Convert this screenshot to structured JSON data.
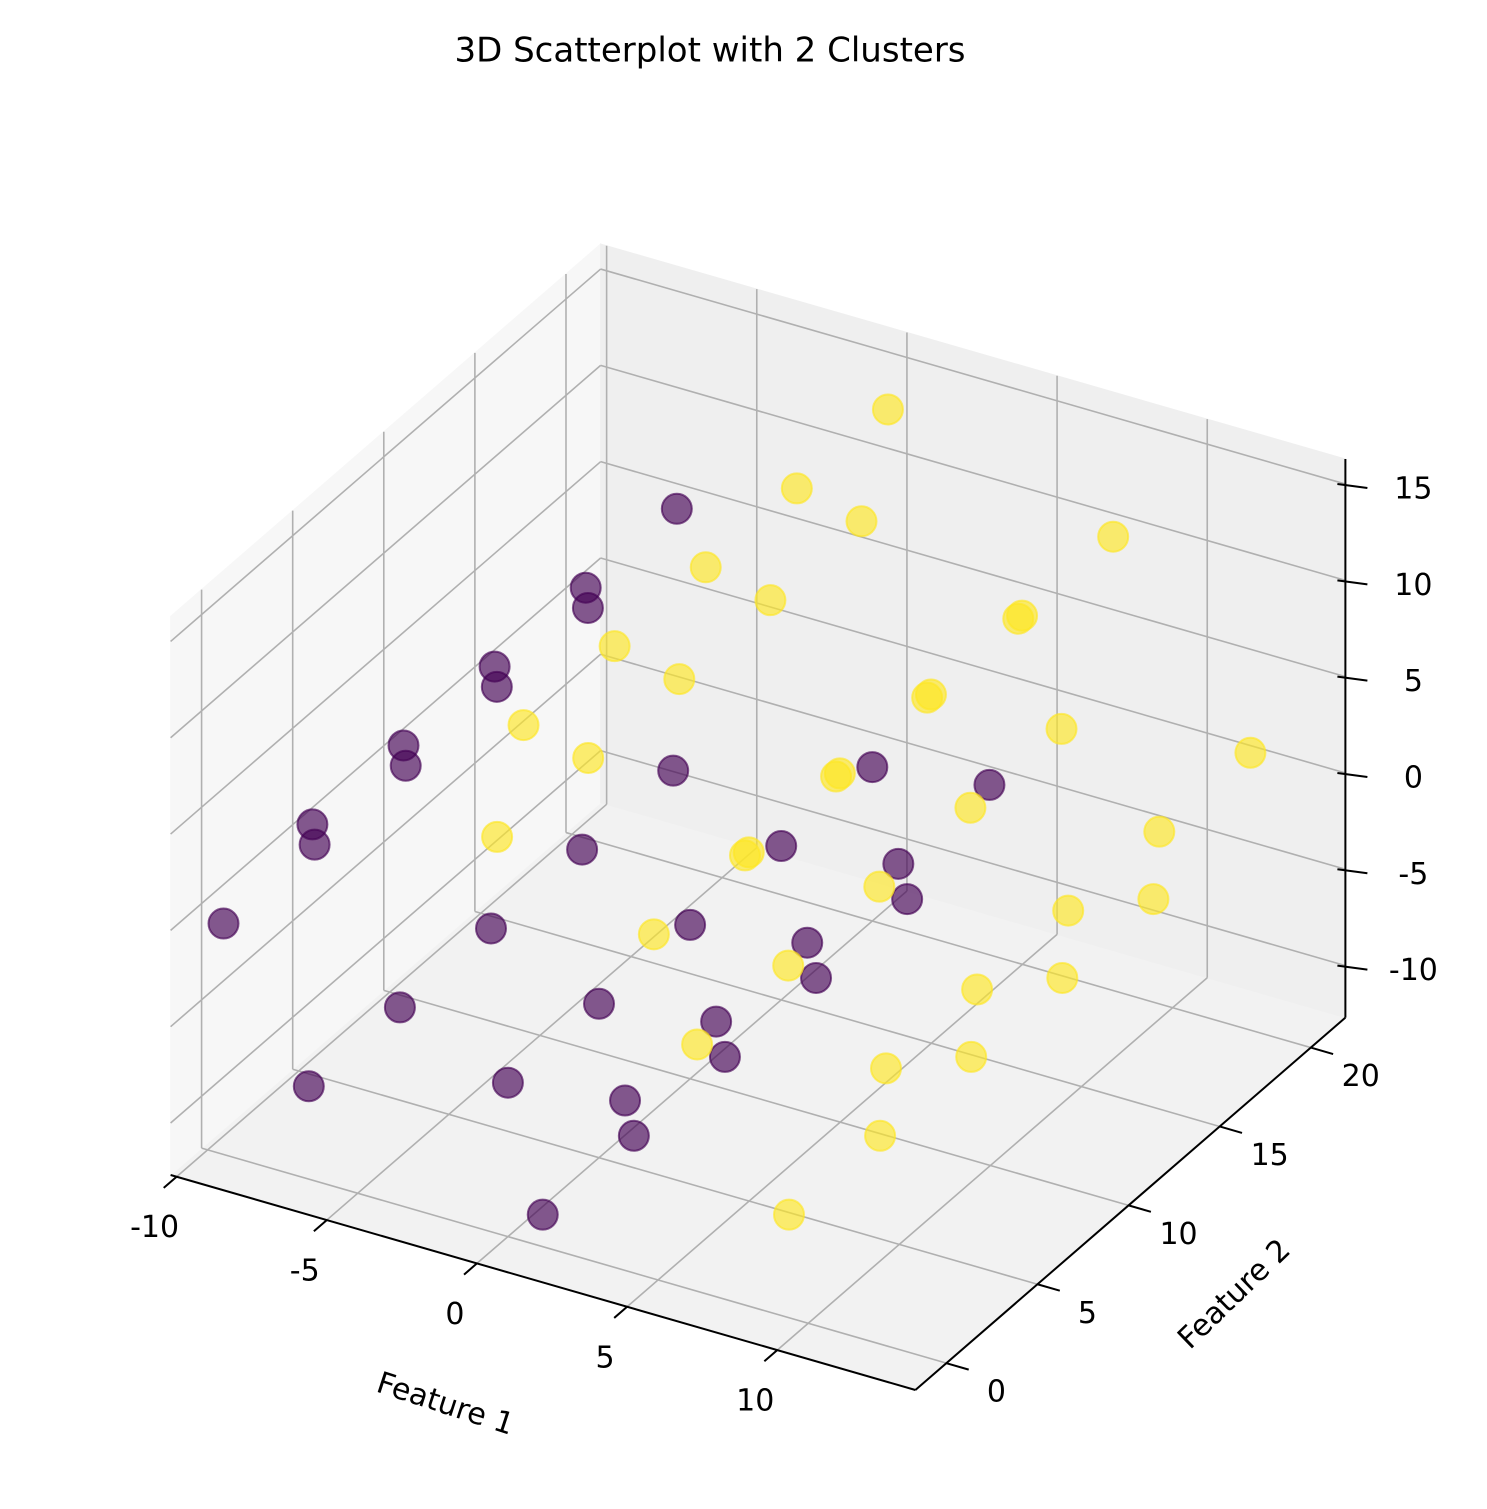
{
  "chart_data": {
    "type": "scatter3d",
    "title": "3D Scatterplot with 2 Clusters",
    "xlabel": "Feature 1",
    "ylabel": "Feature 2",
    "xlim": [
      -10.2,
      14.6
    ],
    "ylim": [
      -1.7,
      21.9
    ],
    "zlim": [
      -12.7,
      16.3
    ],
    "xticks": [
      -10,
      -5,
      0,
      5,
      10
    ],
    "yticks": [
      0,
      5,
      10,
      15,
      20
    ],
    "zticks": [
      -10,
      -5,
      0,
      5,
      10,
      15
    ],
    "grid": true,
    "view": {
      "elev": 30,
      "azim": -60
    },
    "alpha": 0.65,
    "series": [
      {
        "color": "#440154",
        "x": [
          0,
          0,
          0,
          0,
          0,
          3.9,
          3.9,
          3.9,
          3.9,
          3.9,
          -6.51,
          -6.51,
          -6.51,
          -6.51,
          -6.51,
          -9.47,
          -9.47,
          -9.47,
          -9.47,
          -9.47,
          -6.63,
          -6.63,
          -6.63,
          -6.63,
          -6.63,
          1.16,
          1.16,
          1.16,
          1.16,
          1.16
        ],
        "y": [
          0,
          5,
          10,
          15,
          20,
          0,
          5,
          10,
          15,
          20,
          0,
          5,
          10,
          15,
          20,
          0,
          5,
          10,
          15,
          20,
          0,
          5,
          10,
          15,
          20,
          0,
          5,
          10,
          15,
          20
        ],
        "z": [
          -4.71,
          -4.71,
          -4.71,
          -4.71,
          -4.71,
          -3.88,
          -3.88,
          -3.88,
          -3.88,
          -3.88,
          5.77,
          5.77,
          5.77,
          5.77,
          5.77,
          -0.71,
          -0.71,
          -0.71,
          -0.71,
          -0.71,
          -7.88,
          -7.88,
          -7.88,
          -7.88,
          -7.88,
          -11.04,
          -11.04,
          -11.04,
          -11.04,
          -11.04
        ]
      },
      {
        "color": "#fde725",
        "x": [
          6.3,
          6.3,
          6.3,
          6.3,
          6.3,
          4.86,
          4.86,
          4.86,
          4.86,
          4.86,
          -0.36,
          -0.36,
          -0.36,
          -0.36,
          -0.36,
          9.36,
          9.36,
          9.36,
          9.36,
          9.36,
          12.59,
          12.59,
          12.59,
          12.59,
          12.59,
          8.02,
          8.02,
          8.02,
          8.02,
          8.02,
          0.52,
          0.52,
          0.52,
          0.52,
          0.52
        ],
        "y": [
          0,
          5,
          10,
          15,
          20,
          0,
          5,
          10,
          15,
          20,
          0,
          5,
          10,
          15,
          20,
          0,
          5,
          10,
          15,
          20,
          0,
          5,
          10,
          15,
          20,
          0,
          5,
          10,
          15,
          20,
          0,
          5,
          10,
          15,
          20
        ],
        "z": [
          0.11,
          0.11,
          0.11,
          0.11,
          0.11,
          5.18,
          5.18,
          5.18,
          5.18,
          5.18,
          7.89,
          7.89,
          7.89,
          7.89,
          7.89,
          -7.35,
          -7.35,
          -7.35,
          -7.35,
          -7.35,
          1.7,
          1.7,
          1.7,
          1.7,
          1.7,
          10.86,
          10.86,
          10.86,
          10.86,
          10.86,
          14.09,
          14.09,
          14.09,
          14.09,
          14.09
        ]
      }
    ]
  }
}
